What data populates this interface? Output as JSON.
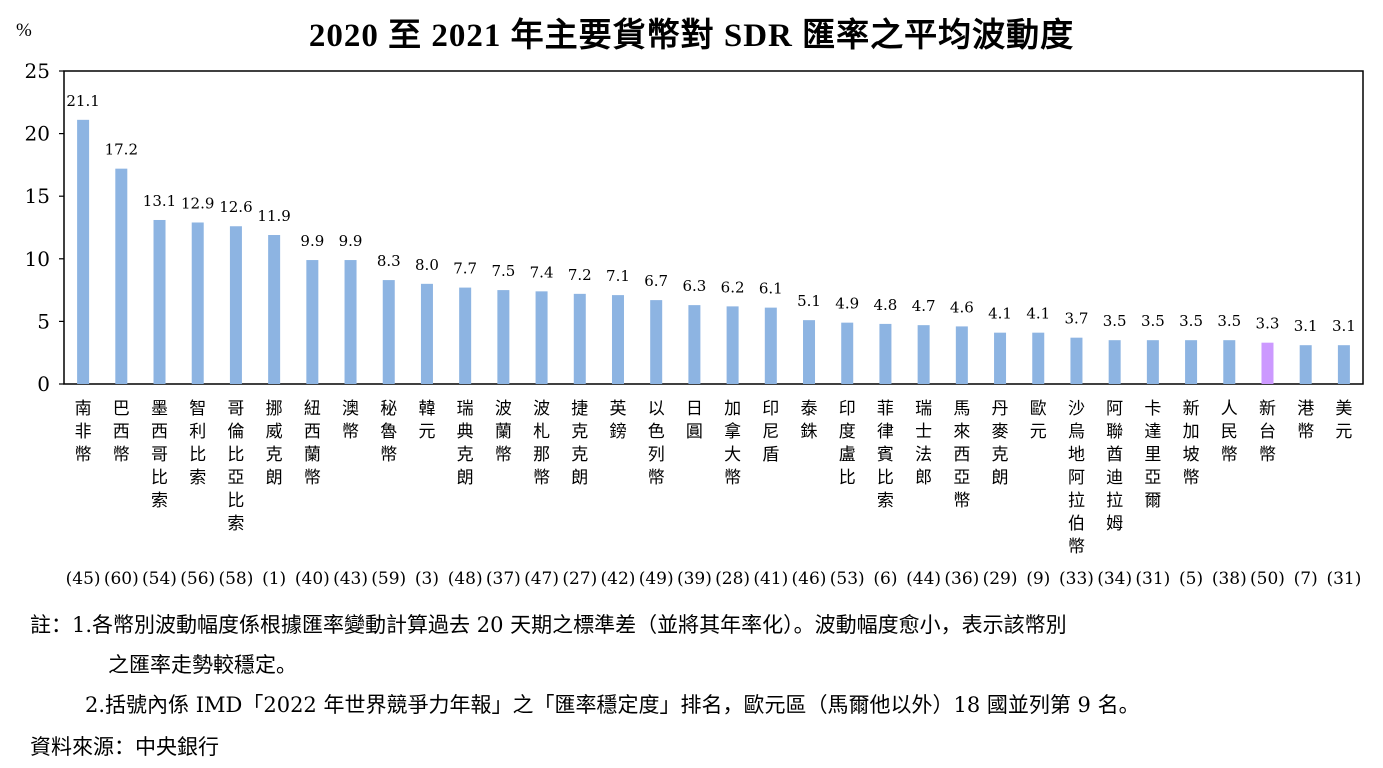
{
  "chart_data": {
    "type": "bar",
    "title": "2020 至 2021 年主要貨幣對 SDR 匯率之平均波動度",
    "ylabel": "%",
    "ylim": [
      0,
      25
    ],
    "yticks": [
      0,
      5,
      10,
      15,
      20,
      25
    ],
    "grid": false,
    "categories": [
      "南非幣",
      "巴西幣",
      "墨西哥比索",
      "智利比索",
      "哥倫比亞比索",
      "挪威克朗",
      "紐西蘭幣",
      "澳幣",
      "秘魯幣",
      "韓元",
      "瑞典克朗",
      "波蘭幣",
      "波札那幣",
      "捷克克朗",
      "英鎊",
      "以色列幣",
      "日圓",
      "加拿大幣",
      "印尼盾",
      "泰銖",
      "印度盧比",
      "菲律賓比索",
      "瑞士法郎",
      "馬來西亞幣",
      "丹麥克朗",
      "歐元",
      "沙烏地阿拉伯幣",
      "阿聯酋迪拉姆",
      "卡達里亞爾",
      "新加坡幣",
      "人民幣",
      "新台幣",
      "港幣",
      "美元"
    ],
    "values": [
      21.1,
      17.2,
      13.1,
      12.9,
      12.6,
      11.9,
      9.9,
      9.9,
      8.3,
      8.0,
      7.7,
      7.5,
      7.4,
      7.2,
      7.1,
      6.7,
      6.3,
      6.2,
      6.1,
      5.1,
      4.9,
      4.8,
      4.7,
      4.6,
      4.1,
      4.1,
      3.7,
      3.5,
      3.5,
      3.5,
      3.5,
      3.3,
      3.1,
      3.1
    ],
    "value_labels": [
      "21.1",
      "17.2",
      "13.1",
      "12.9",
      "12.6",
      "11.9",
      "9.9",
      "9.9",
      "8.3",
      "8.0",
      "7.7",
      "7.5",
      "7.4",
      "7.2",
      "7.1",
      "6.7",
      "6.3",
      "6.2",
      "6.1",
      "5.1",
      "4.9",
      "4.8",
      "4.7",
      "4.6",
      "4.1",
      "4.1",
      "3.7",
      "3.5",
      "3.5",
      "3.5",
      "3.5",
      "3.3",
      "3.1",
      "3.1"
    ],
    "ranks": [
      "(45)",
      "(60)",
      "(54)",
      "(56)",
      "(58)",
      "(1)",
      "(40)",
      "(43)",
      "(59)",
      "(3)",
      "(48)",
      "(37)",
      "(47)",
      "(27)",
      "(42)",
      "(49)",
      "(39)",
      "(28)",
      "(41)",
      "(46)",
      "(53)",
      "(6)",
      "(44)",
      "(36)",
      "(29)",
      "(9)",
      "(33)",
      "(34)",
      "(31)",
      "(5)",
      "(38)",
      "(50)",
      "(7)",
      "(31)"
    ],
    "highlight_index": 31,
    "bar_color": "#8db4e2",
    "highlight_color": "#cc99ff"
  },
  "notes": {
    "line1": "註：1.各幣別波動幅度係根據匯率變動計算過去 20 天期之標準差（並將其年率化）。波動幅度愈小，表示該幣別",
    "line2": "之匯率走勢較穩定。",
    "line3": "2.括號內係 IMD「2022 年世界競爭力年報」之「匯率穩定度」排名，歐元區（馬爾他以外）18 國並列第 9 名。"
  },
  "source": "資料來源：中央銀行"
}
